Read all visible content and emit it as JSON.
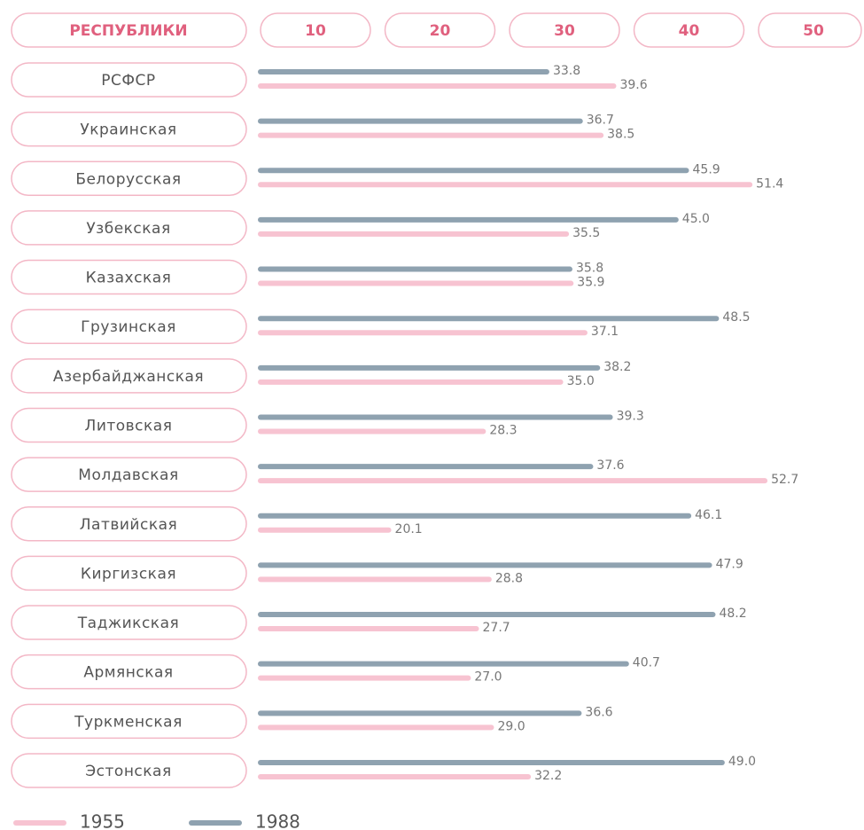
{
  "chart_data": {
    "type": "bar",
    "orientation": "horizontal",
    "category_header": "РЕСПУБЛИКИ",
    "column_headers": [
      10,
      20,
      30,
      40,
      50
    ],
    "categories": [
      "РСФСР",
      "Украинская",
      "Белорусская",
      "Узбекская",
      "Казахская",
      "Грузинская",
      "Азербайджанская",
      "Литовская",
      "Молдавская",
      "Латвийская",
      "Киргизская",
      "Таджикская",
      "Армянская",
      "Туркменская",
      "Эстонская"
    ],
    "series": [
      {
        "name": "1955",
        "color": "#f7c3d1",
        "values": [
          39.6,
          38.5,
          51.4,
          35.5,
          35.9,
          37.1,
          35.0,
          28.3,
          52.7,
          20.1,
          28.8,
          27.7,
          27.0,
          29.0,
          32.2
        ],
        "value_labels": [
          "39.6",
          "38.5",
          "51.4",
          "35.5",
          "35.9",
          "37.1",
          "35.0",
          "28.3",
          "52.7",
          "20.1",
          "28.8",
          "27.7",
          "27.0",
          "29.0",
          "32.2"
        ]
      },
      {
        "name": "1988",
        "color": "#8fa2b0",
        "values": [
          33.8,
          36.7,
          45.9,
          45.0,
          35.8,
          48.5,
          38.2,
          39.3,
          37.6,
          46.1,
          47.9,
          48.2,
          40.7,
          36.6,
          49.0
        ],
        "value_labels": [
          "33.8",
          "36.7",
          "45.9",
          "45.0",
          "35.8",
          "48.5",
          "38.2",
          "39.3",
          "37.6",
          "46.1",
          "47.9",
          "48.2",
          "40.7",
          "36.6",
          "49.0"
        ]
      }
    ],
    "xlim": [
      9,
      54
    ]
  }
}
